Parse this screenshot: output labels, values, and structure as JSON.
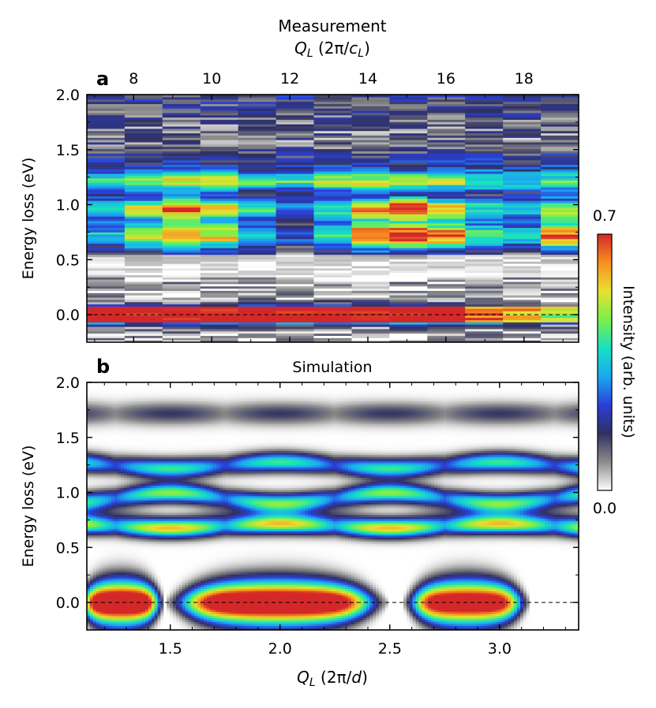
{
  "figure": {
    "top_label_line1": "Measurement",
    "top_label_line2": "Q_L (2π/c_L)",
    "panel_a_letter": "a",
    "panel_b_letter": "b",
    "panel_b_title": "Simulation",
    "bottom_xlabel": "Q_L (2π/d)",
    "ylabel": "Energy loss (eV)",
    "colorbar_label": "Intensity (arb. units)",
    "colorbar_max_label": "0.7",
    "colorbar_min_label": "0.0",
    "colormap": [
      "#ffffff",
      "#8c8c8c",
      "#303060",
      "#2a3fd8",
      "#1ba8f0",
      "#18e0c0",
      "#7cf048",
      "#e8e030",
      "#f89020",
      "#d42828"
    ]
  },
  "chart_data": [
    {
      "panel": "a",
      "type": "heatmap",
      "title": "Measurement",
      "xlabel": "Q_L (2π/c_L)",
      "ylabel": "Energy loss (eV)",
      "xlim": [
        6.8,
        19.4
      ],
      "ylim": [
        -0.25,
        2.0
      ],
      "xticks": [
        "8",
        "10",
        "12",
        "14",
        "16",
        "18"
      ],
      "xtick_values": [
        8,
        10,
        12,
        14,
        16,
        18
      ],
      "yticks": [
        "0.0",
        "0.5",
        "1.0",
        "1.5",
        "2.0"
      ],
      "ytick_values": [
        0,
        0.5,
        1.0,
        1.5,
        2.0
      ],
      "columns_x": [
        7.2,
        8.2,
        9.2,
        10.2,
        11.2,
        12.2,
        13.2,
        14.2,
        15.2,
        16.2,
        17.2,
        18.2,
        19.2
      ],
      "elastic_line_intensity": [
        0.7,
        0.7,
        0.7,
        0.7,
        0.7,
        0.7,
        0.7,
        0.7,
        0.7,
        0.7,
        0.6,
        0.55,
        0.45
      ],
      "band_0p7eV_intensity": [
        0.3,
        0.45,
        0.55,
        0.5,
        0.3,
        0.2,
        0.4,
        0.65,
        0.7,
        0.6,
        0.4,
        0.3,
        0.6
      ],
      "band_0p95eV_intensity": [
        0.35,
        0.45,
        0.6,
        0.55,
        0.35,
        0.2,
        0.35,
        0.55,
        0.65,
        0.5,
        0.35,
        0.3,
        0.45
      ],
      "band_1p2eV_intensity": [
        0.3,
        0.4,
        0.45,
        0.45,
        0.35,
        0.35,
        0.4,
        0.45,
        0.45,
        0.4,
        0.35,
        0.3,
        0.35
      ],
      "reference_line_y": 0.0,
      "vmin": 0.0,
      "vmax": 0.7
    },
    {
      "panel": "b",
      "type": "heatmap",
      "title": "Simulation",
      "xlabel": "Q_L (2π/d)",
      "ylabel": "Energy loss (eV)",
      "xlim": [
        1.12,
        3.36
      ],
      "ylim": [
        -0.25,
        2.0
      ],
      "xticks": [
        "1.5",
        "2.0",
        "2.5",
        "3.0"
      ],
      "xtick_values": [
        1.5,
        2.0,
        2.5,
        3.0
      ],
      "yticks": [
        "0.0",
        "0.5",
        "1.0",
        "1.5",
        "2.0"
      ],
      "ytick_values": [
        0,
        0.5,
        1.0,
        1.5,
        2.0
      ],
      "elastic_lobes": [
        {
          "x_start": 1.1,
          "x_end": 1.45,
          "intensity": 0.7
        },
        {
          "x_start": 1.55,
          "x_end": 2.42,
          "intensity": 0.7
        },
        {
          "x_start": 2.6,
          "x_end": 3.1,
          "intensity": 0.65
        }
      ],
      "bands": [
        {
          "energy": 1.72,
          "amplitude": 0.15,
          "period": 1.0,
          "phase": 2.0
        },
        {
          "energy": 1.25,
          "amplitude": 0.42,
          "period": 1.0,
          "phase": 2.0
        },
        {
          "energy": 0.95,
          "amplitude": 0.48,
          "period": 1.0,
          "phase": 1.5
        },
        {
          "energy": 0.7,
          "amplitude": 0.58,
          "period": 1.0,
          "phase": 1.5
        }
      ],
      "reference_line_y": 0.0,
      "vmin": 0.0,
      "vmax": 0.7
    }
  ]
}
